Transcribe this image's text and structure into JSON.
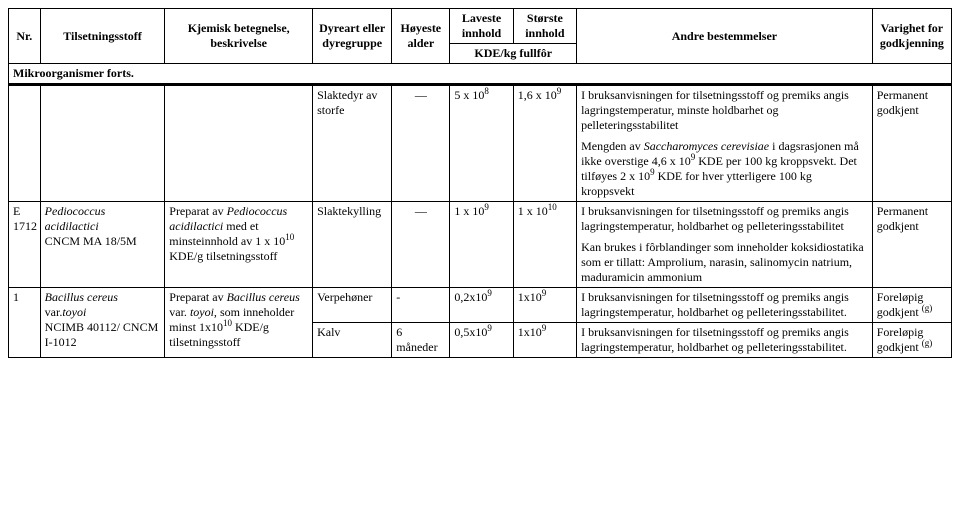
{
  "header": {
    "nr": "Nr.",
    "tilsetningsstoff": "Tilsetningsstoff",
    "kjemisk": "Kjemisk betegnelse, beskrivelse",
    "dyreart": "Dyreart eller dyregruppe",
    "hoyeste": "Høyeste alder",
    "laveste": "Laveste innhold",
    "storste": "Største innhold",
    "kde": "KDE/kg fullfôr",
    "andre": "Andre bestemmelser",
    "varighet": "Varighet for godkjenning"
  },
  "section": "Mikroorganismer forts.",
  "rows": [
    {
      "nr": "",
      "stoff": "",
      "besk": "",
      "dyreart": "Slaktedyr av storfe",
      "alder": "—",
      "lav": "5 x 10⁸",
      "stor": "1,6 x 10⁹",
      "det_main": "I bruksanvisningen for tilsetningsstoff og premiks angis lagringstemperatur, minste holdbarhet og pelleteringsstabilitet",
      "det_extra": "Mengden av Saccharomyces cerevisiae i dagsrasjonen må ikke overstige 4,6 x 10⁹ KDE per 100 kg kroppsvekt. Det tilføyes 2 x 10⁹ KDE for hver ytterligere 100 kg kroppsvekt",
      "var": "Permanent godkjent"
    },
    {
      "nr": "E 1712",
      "stoff_name": "Pediococcus acidilactici",
      "stoff_code": "CNCM MA 18/5M",
      "besk_prefix": "Preparat av ",
      "besk_lat": "Pediococcus acidilactici",
      "besk_suffix": " med et minsteinnhold av 1 x 10¹⁰ KDE/g tilsetningsstoff",
      "dyreart": "Slaktekylling",
      "alder": "—",
      "lav": "1 x 10⁹",
      "stor": "1 x 10¹⁰",
      "det_main": "I bruksanvisningen for tilsetningsstoff og premiks angis lagringstemperatur, holdbarhet og pelleteringsstabilitet",
      "det_extra": "Kan brukes i fôrblandinger som inneholder koksidiostatika som er tillatt: Amprolium, narasin, salinomycin natrium, maduramicin ammonium",
      "var": "Permanent godkjent"
    },
    {
      "nr": "1",
      "stoff_name": "Bacillus cereus",
      "stoff_suffix": " var.",
      "stoff_lat2": "toyoi",
      "stoff_code": "NCIMB 40112/ CNCM I-1012",
      "besk_prefix": "Preparat av ",
      "besk_lat": "Bacillus cereus",
      "besk_mid": " var. ",
      "besk_lat2": "toyoi,",
      "besk_suffix": " som inneholder minst 1x10¹⁰ KDE/g tilsetningsstoff",
      "dyreart": "Verpehøner",
      "alder": "-",
      "lav": "0,2x10⁹",
      "stor": "1x10⁹",
      "det_main": "I bruksanvisningen for tilsetningsstoff og premiks angis lagringstemperatur, holdbarhet og pelleteringsstabilitet.",
      "var": "Foreløpig godkjent ⁽ᵍ⁾"
    },
    {
      "dyreart": "Kalv",
      "alder": "6 måneder",
      "lav": "0,5x10⁹",
      "stor": "1x10⁹",
      "det_main": "I bruksanvisningen for tilsetningsstoff og premiks angis lagringstemperatur, holdbarhet og pelleteringsstabilitet.",
      "var": "Foreløpig godkjent ⁽ᵍ⁾"
    }
  ]
}
